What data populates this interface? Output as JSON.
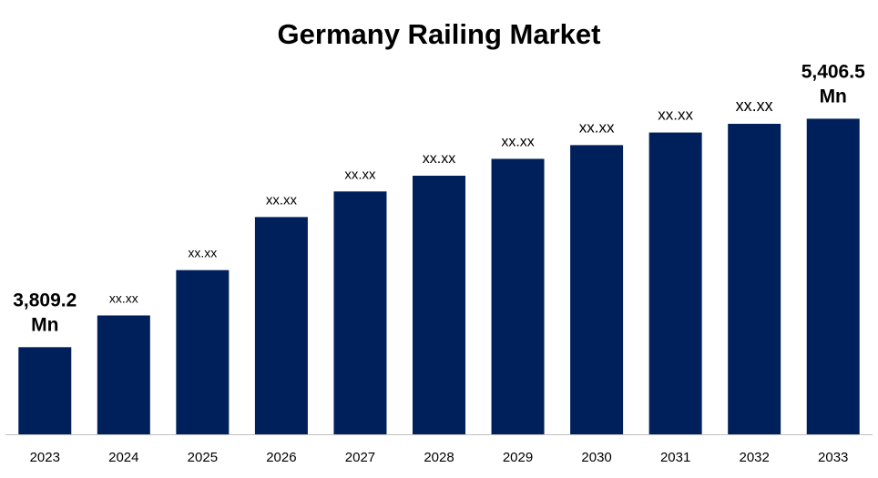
{
  "colors": {
    "bar": "#00205B",
    "axis": "#bfbfbf",
    "text": "#000000"
  },
  "chart_data": {
    "type": "bar",
    "title": "Germany Railing Market",
    "xlabel": "",
    "ylabel": "",
    "categories": [
      "2023",
      "2024",
      "2025",
      "2026",
      "2027",
      "2028",
      "2029",
      "2030",
      "2031",
      "2032",
      "2033"
    ],
    "values": [
      3809.2,
      4031,
      4348,
      4719,
      4898,
      5008,
      5126,
      5222,
      5310,
      5371,
      5406.5
    ],
    "value_labels": [
      "3,809.2 Mn",
      "xx.xx",
      "xx.xx",
      "xx.xx",
      "xx.xx",
      "xx.xx",
      "xx.xx",
      "xx.xx",
      "xx.xx",
      "xx.xx",
      "5,406.5 Mn"
    ],
    "ylim": [
      3200,
      5600
    ],
    "grid": false,
    "legend": "none"
  }
}
